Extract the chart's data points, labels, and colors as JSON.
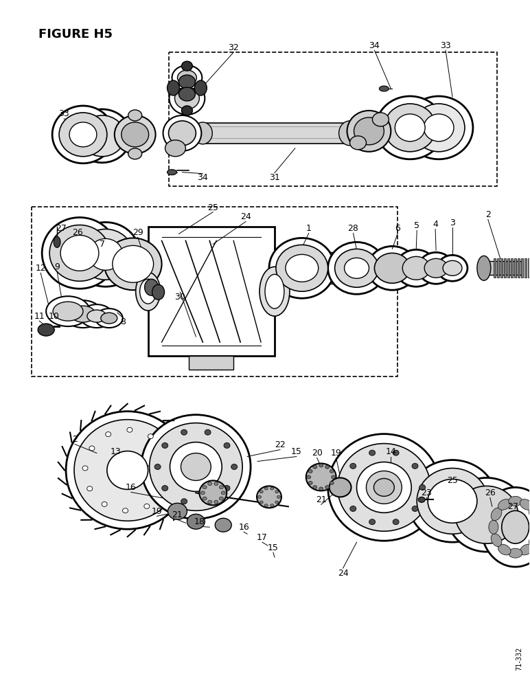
{
  "title": "FIGURE H5",
  "bg": "#ffffff",
  "fig_w": 7.72,
  "fig_h": 10.0,
  "dpi": 100,
  "watermark": "71-332"
}
